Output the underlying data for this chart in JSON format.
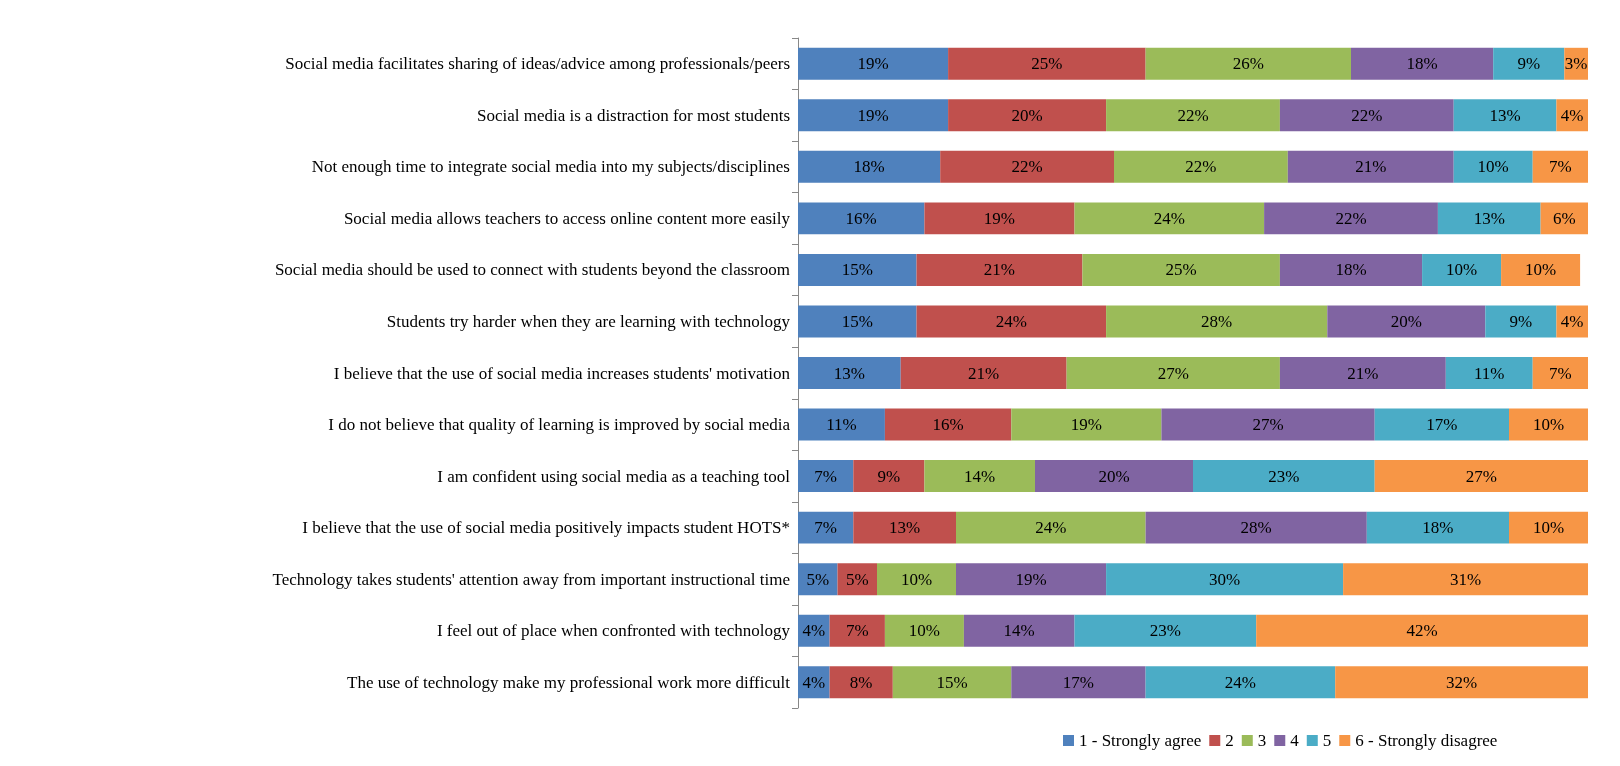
{
  "chart_data": {
    "type": "bar",
    "orientation": "horizontal",
    "stacked": true,
    "legend": "bottom",
    "grid": false,
    "tick_labels": "y",
    "xlim": [
      0,
      100
    ],
    "categories": [
      "Social media facilitates sharing of ideas/advice among professionals/peers",
      "Social media is a distraction for most students",
      "Not enough time to integrate social media into my subjects/disciplines",
      "Social media allows teachers to access online content more easily",
      "Social media should be used to connect with students beyond the classroom",
      "Students try harder when they are learning with technology",
      "I believe that the use of social media increases students' motivation",
      "I do not believe that quality of learning is improved by social media",
      "I am confident using social media as a teaching tool",
      "I believe that the use of social media positively impacts student HOTS*",
      "Technology takes students' attention away from important instructional time",
      "I feel out of place when confronted with technology",
      "The use of technology make my professional work more difficult"
    ],
    "series": [
      {
        "name": "1 - Strongly agree",
        "color": "#4f81bd",
        "values": [
          19,
          19,
          18,
          16,
          15,
          15,
          13,
          11,
          7,
          7,
          5,
          4,
          4
        ],
        "value_labels": [
          "19%",
          "19%",
          "18%",
          "16%",
          "15%",
          "15%",
          "13%",
          "11%",
          "7%",
          "7%",
          "5%",
          "4%",
          "4%"
        ]
      },
      {
        "name": "2",
        "color": "#c0504d",
        "values": [
          25,
          20,
          22,
          19,
          21,
          24,
          21,
          16,
          9,
          13,
          5,
          7,
          8
        ],
        "value_labels": [
          "25%",
          "20%",
          "22%",
          "19%",
          "21%",
          "24%",
          "21%",
          "16%",
          "9%",
          "13%",
          "5%",
          "7%",
          "8%"
        ]
      },
      {
        "name": "3",
        "color": "#9bbb59",
        "values": [
          26,
          22,
          22,
          24,
          25,
          28,
          27,
          19,
          14,
          24,
          10,
          10,
          15
        ],
        "value_labels": [
          "26%",
          "22%",
          "22%",
          "24%",
          "25%",
          "28%",
          "27%",
          "19%",
          "14%",
          "24%",
          "10%",
          "10%",
          "15%"
        ]
      },
      {
        "name": "4",
        "color": "#8064a2",
        "values": [
          18,
          22,
          21,
          22,
          18,
          20,
          21,
          27,
          20,
          28,
          19,
          14,
          17
        ],
        "value_labels": [
          "18%",
          "22%",
          "21%",
          "22%",
          "18%",
          "20%",
          "21%",
          "27%",
          "20%",
          "28%",
          "19%",
          "14%",
          "17%"
        ]
      },
      {
        "name": "5",
        "color": "#4bacc6",
        "values": [
          9,
          13,
          10,
          13,
          10,
          9,
          11,
          17,
          23,
          18,
          30,
          23,
          24
        ],
        "value_labels": [
          "9%",
          "13%",
          "10%",
          "13%",
          "10%",
          "9%",
          "11%",
          "17%",
          "23%",
          "18%",
          "30%",
          "23%",
          "24%"
        ]
      },
      {
        "name": "6 - Strongly disagree",
        "color": "#f79646",
        "values": [
          3,
          4,
          7,
          6,
          10,
          4,
          7,
          10,
          27,
          10,
          31,
          42,
          32
        ],
        "value_labels": [
          "3%",
          "4%",
          "7%",
          "6%",
          "10%",
          "4%",
          "7%",
          "10%",
          "27%",
          "10%",
          "31%",
          "42%",
          "32%"
        ]
      }
    ]
  }
}
